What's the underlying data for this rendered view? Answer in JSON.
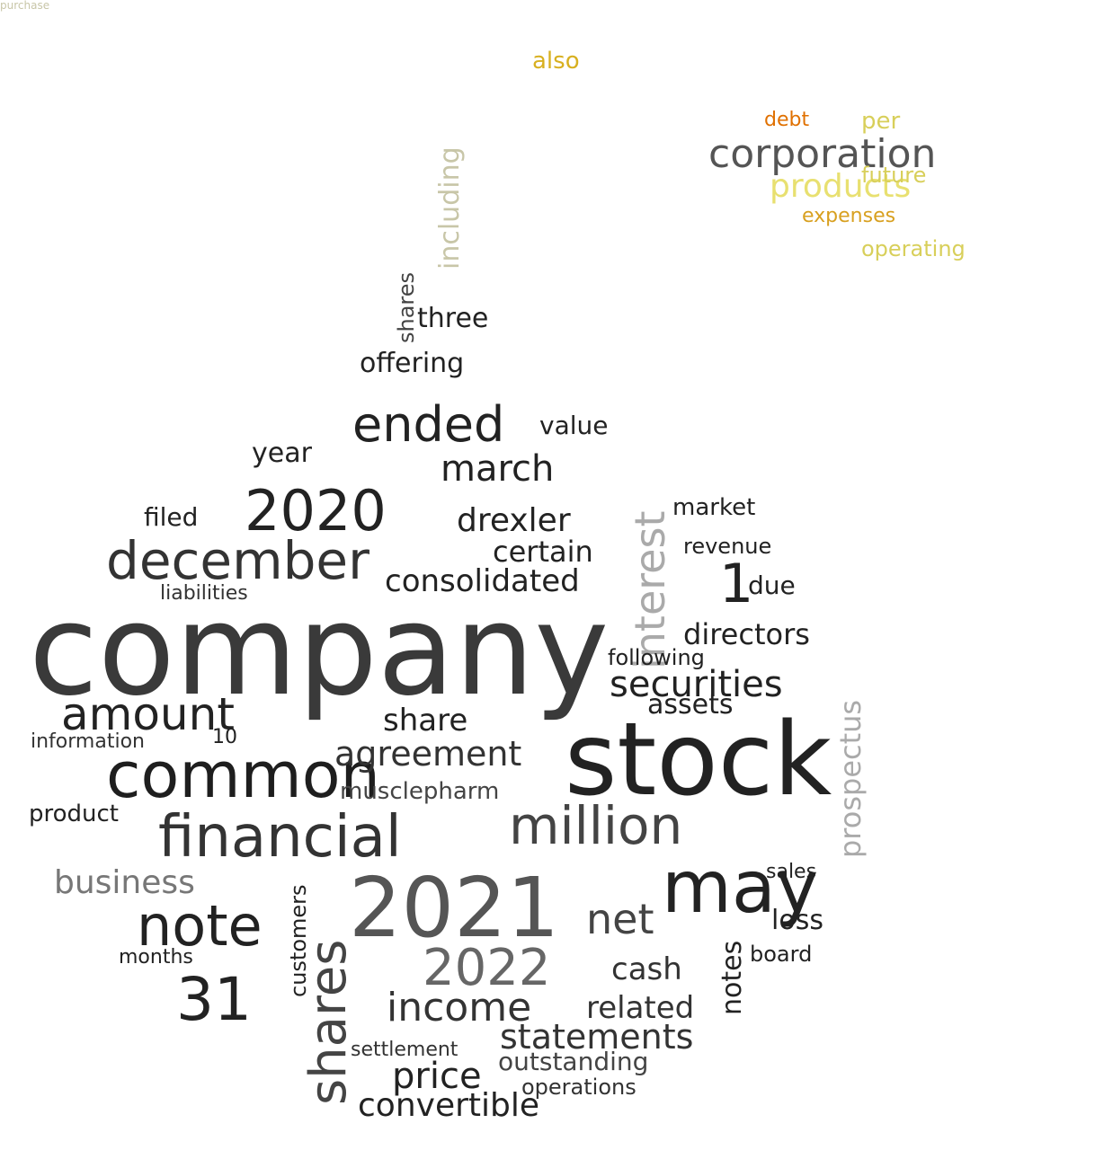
{
  "palette": {
    "background": "#ffffff",
    "core_dark": "#2a2a2a",
    "core_mid": "#555555",
    "core_light": "#9a9a9a",
    "fuse_olive": "#8c8a60",
    "fuse_pale": "#c8c6a8",
    "spark_yellow": "#f2e400",
    "spark_khaki": "#d8cf5a",
    "spark_orange": "#f07a10",
    "spark_darkorange": "#e06000"
  },
  "words": [
    {
      "t": "company",
      "c": "#3a3a3a"
    },
    {
      "t": "stock",
      "c": "#222222"
    },
    {
      "t": "common",
      "c": "#1e1e1e"
    },
    {
      "t": "financial",
      "c": "#333333"
    },
    {
      "t": "million",
      "c": "#444444"
    },
    {
      "t": "may",
      "c": "#222222"
    },
    {
      "t": "2021",
      "c": "#555555"
    },
    {
      "t": "note",
      "c": "#222222"
    },
    {
      "t": "shares",
      "c": "#444444"
    },
    {
      "t": "december",
      "c": "#333333"
    },
    {
      "t": "amount",
      "c": "#222222"
    },
    {
      "t": "2020",
      "c": "#222222"
    },
    {
      "t": "ended",
      "c": "#222222"
    },
    {
      "t": "31",
      "c": "#222222"
    },
    {
      "t": "income",
      "c": "#333333"
    },
    {
      "t": "2022",
      "c": "#666666"
    },
    {
      "t": "interest",
      "c": "#aaaaaa"
    },
    {
      "t": "securities",
      "c": "#222222"
    },
    {
      "t": "agreement",
      "c": "#333333"
    },
    {
      "t": "consolidated",
      "c": "#222222"
    },
    {
      "t": "statements",
      "c": "#333333"
    },
    {
      "t": "net",
      "c": "#444444"
    },
    {
      "t": "march",
      "c": "#222222"
    },
    {
      "t": "prospectus",
      "c": "#aaaaaa"
    },
    {
      "t": "price",
      "c": "#222222"
    },
    {
      "t": "convertible",
      "c": "#222222"
    },
    {
      "t": "business",
      "c": "#777777"
    },
    {
      "t": "drexler",
      "c": "#222222"
    },
    {
      "t": "certain",
      "c": "#222222"
    },
    {
      "t": "1",
      "c": "#222222"
    },
    {
      "t": "share",
      "c": "#222222"
    },
    {
      "t": "assets",
      "c": "#222222"
    },
    {
      "t": "directors",
      "c": "#222222"
    },
    {
      "t": "cash",
      "c": "#333333"
    },
    {
      "t": "loss",
      "c": "#222222"
    },
    {
      "t": "related",
      "c": "#333333"
    },
    {
      "t": "notes",
      "c": "#222222"
    },
    {
      "t": "offering",
      "c": "#222222"
    },
    {
      "t": "year",
      "c": "#222222"
    },
    {
      "t": "musclepharm",
      "c": "#444444"
    },
    {
      "t": "outstanding",
      "c": "#444444"
    },
    {
      "t": "value",
      "c": "#222222"
    },
    {
      "t": "following",
      "c": "#222222"
    },
    {
      "t": "information",
      "c": "#333333"
    },
    {
      "t": "product",
      "c": "#222222"
    },
    {
      "t": "due",
      "c": "#222222"
    },
    {
      "t": "filed",
      "c": "#222222"
    },
    {
      "t": "liabilities",
      "c": "#333333"
    },
    {
      "t": "market",
      "c": "#222222"
    },
    {
      "t": "revenue",
      "c": "#222222"
    },
    {
      "t": "board",
      "c": "#222222"
    },
    {
      "t": "sales",
      "c": "#222222"
    },
    {
      "t": "shares",
      "c": "#444444"
    },
    {
      "t": "three",
      "c": "#222222"
    },
    {
      "t": "10",
      "c": "#222222"
    },
    {
      "t": "customers",
      "c": "#222222"
    },
    {
      "t": "operations",
      "c": "#333333"
    },
    {
      "t": "settlement",
      "c": "#333333"
    },
    {
      "t": "months",
      "c": "#222222"
    },
    {
      "t": "corporation",
      "c": "#555555"
    },
    {
      "t": "products",
      "c": "#e8e070"
    },
    {
      "t": "per",
      "c": "#d8cf5a"
    },
    {
      "t": "debt",
      "c": "#e07000"
    },
    {
      "t": "future",
      "c": "#d8cf5a"
    },
    {
      "t": "expenses",
      "c": "#d8a020"
    },
    {
      "t": "operating",
      "c": "#d8cf5a"
    },
    {
      "t": "also",
      "c": "#d8b020"
    },
    {
      "t": "including",
      "c": "#c8c6a8"
    },
    {
      "t": "purchase",
      "c": "#c8c6a8"
    }
  ]
}
